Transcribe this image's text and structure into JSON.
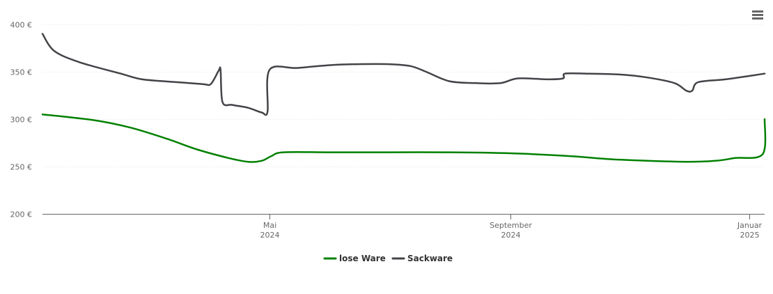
{
  "colors": {
    "background": "#ffffff",
    "grid": "#e6e6e6",
    "axis": "#666666",
    "tick_text": "#666666",
    "menu": "#666666"
  },
  "menu_icon": "hamburger-menu-icon",
  "chart_data": {
    "type": "line",
    "x_type": "date",
    "x_range": [
      "2024-01-06",
      "2025-01-09"
    ],
    "ylim": [
      200,
      400
    ],
    "y_ticks": [
      {
        "value": 200,
        "label": "200 €"
      },
      {
        "value": 250,
        "label": "250 €"
      },
      {
        "value": 300,
        "label": "300 €"
      },
      {
        "value": 350,
        "label": "350 €"
      },
      {
        "value": 400,
        "label": "400 €"
      }
    ],
    "x_ticks": [
      {
        "date": "2024-05-01",
        "label": [
          "Mai",
          "2024"
        ]
      },
      {
        "date": "2024-09-01",
        "label": [
          "September",
          "2024"
        ]
      },
      {
        "date": "2025-01-01",
        "label": [
          "Januar",
          "2025"
        ]
      }
    ],
    "grid": "horizontal",
    "legend_position": "bottom-center",
    "series": [
      {
        "name": "lose Ware",
        "color": "#008000",
        "points": [
          [
            "2024-01-06",
            305
          ],
          [
            "2024-02-01",
            299
          ],
          [
            "2024-02-20",
            291
          ],
          [
            "2024-03-10",
            279
          ],
          [
            "2024-03-25",
            268
          ],
          [
            "2024-04-10",
            259
          ],
          [
            "2024-04-20",
            255
          ],
          [
            "2024-04-27",
            256
          ],
          [
            "2024-05-02",
            261
          ],
          [
            "2024-05-08",
            265
          ],
          [
            "2024-06-01",
            265
          ],
          [
            "2024-07-01",
            265
          ],
          [
            "2024-08-01",
            265
          ],
          [
            "2024-09-01",
            264
          ],
          [
            "2024-10-01",
            261
          ],
          [
            "2024-10-20",
            258
          ],
          [
            "2024-11-10",
            256
          ],
          [
            "2024-12-01",
            255
          ],
          [
            "2024-12-15",
            256
          ],
          [
            "2024-12-25",
            259
          ],
          [
            "2025-01-08",
            263
          ],
          [
            "2025-01-09",
            300
          ]
        ]
      },
      {
        "name": "Sackware",
        "color": "#434348",
        "points": [
          [
            "2024-01-06",
            390
          ],
          [
            "2024-01-12",
            372
          ],
          [
            "2024-01-25",
            360
          ],
          [
            "2024-02-15",
            348
          ],
          [
            "2024-02-26",
            342
          ],
          [
            "2024-03-15",
            339
          ],
          [
            "2024-03-28",
            337
          ],
          [
            "2024-04-01",
            337
          ],
          [
            "2024-04-05",
            351
          ],
          [
            "2024-04-06",
            352
          ],
          [
            "2024-04-07",
            318
          ],
          [
            "2024-04-12",
            315
          ],
          [
            "2024-04-20",
            312
          ],
          [
            "2024-04-27",
            307
          ],
          [
            "2024-04-30",
            308
          ],
          [
            "2024-05-01",
            352
          ],
          [
            "2024-05-15",
            354
          ],
          [
            "2024-06-01",
            357
          ],
          [
            "2024-06-15",
            358
          ],
          [
            "2024-07-01",
            358
          ],
          [
            "2024-07-12",
            356
          ],
          [
            "2024-07-20",
            350
          ],
          [
            "2024-08-01",
            340
          ],
          [
            "2024-08-15",
            338
          ],
          [
            "2024-08-27",
            338
          ],
          [
            "2024-09-05",
            343
          ],
          [
            "2024-09-20",
            342
          ],
          [
            "2024-09-28",
            343
          ],
          [
            "2024-09-29",
            348
          ],
          [
            "2024-10-10",
            348
          ],
          [
            "2024-10-28",
            347
          ],
          [
            "2024-11-10",
            344
          ],
          [
            "2024-11-24",
            338
          ],
          [
            "2024-11-30",
            330
          ],
          [
            "2024-12-03",
            330
          ],
          [
            "2024-12-06",
            339
          ],
          [
            "2024-12-20",
            342
          ],
          [
            "2025-01-09",
            348
          ]
        ]
      }
    ]
  }
}
